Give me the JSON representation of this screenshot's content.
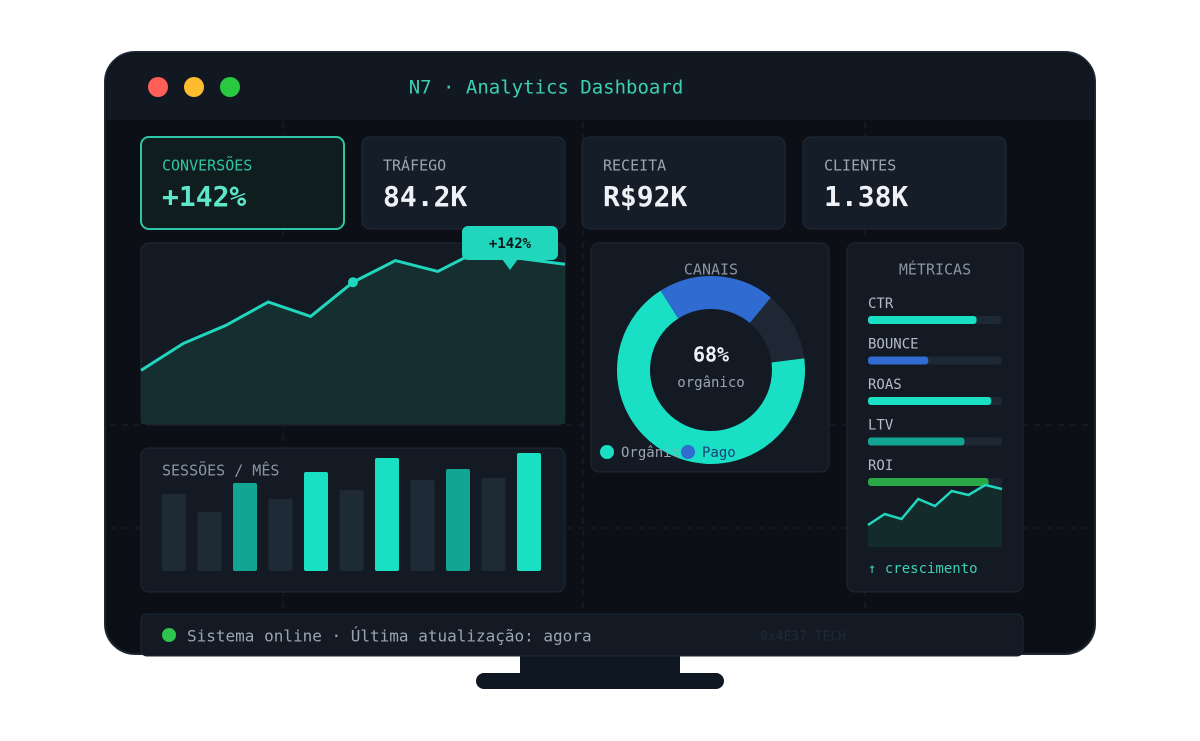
{
  "window": {
    "title": "N7 · Analytics Dashboard"
  },
  "kpis": [
    {
      "label": "CONVERSÕES",
      "value": "+142%"
    },
    {
      "label": "TRÁFEGO",
      "value": "84.2K"
    },
    {
      "label": "RECEITA",
      "value": "R$92K"
    },
    {
      "label": "CLIENTES",
      "value": "1.38K"
    }
  ],
  "trend": {
    "tooltip": "+142%",
    "values": [
      22,
      37,
      47,
      60,
      52,
      71,
      83,
      77,
      89,
      84,
      81
    ],
    "color": "#20d6bd"
  },
  "sessions": {
    "title": "SESSÕES / MÊS",
    "values": [
      77,
      59,
      88,
      72,
      99,
      81,
      113,
      91,
      102,
      93,
      118
    ],
    "colors": [
      "#1f2a37",
      "#1f2a37",
      "#12a593",
      "#1f2a37",
      "#19e0c5",
      "#1f2a37",
      "#19e0c5",
      "#1f2a37",
      "#12a593",
      "#1f2a37",
      "#19e0c5"
    ]
  },
  "channels": {
    "title": "CANAIS",
    "center_value": "68%",
    "center_label": "orgânico",
    "segments": [
      {
        "name": "Orgânico",
        "value": 68,
        "color": "#19e0c5"
      },
      {
        "name": "Pago",
        "value": 20,
        "color": "#2f6bd0"
      },
      {
        "value": 12,
        "color": "#1e2835"
      }
    ]
  },
  "metrics": {
    "title": "MÉTRICAS",
    "items": [
      {
        "name": "CTR",
        "value": 81,
        "color": "#19e0c5"
      },
      {
        "name": "BOUNCE",
        "value": 45,
        "color": "#2f6bd0"
      },
      {
        "name": "ROAS",
        "value": 92,
        "color": "#19e0c5"
      },
      {
        "name": "LTV",
        "value": 72,
        "color": "#12a593"
      },
      {
        "name": "ROI",
        "value": 90,
        "color": "#2aa845"
      }
    ],
    "growth": [
      21,
      32,
      27,
      47,
      40,
      55,
      51,
      61,
      57
    ],
    "footer": "↑ crescimento"
  },
  "status": {
    "text": "Sistema online · Última atualização: agora",
    "tag": "0x4E37 TECH"
  }
}
